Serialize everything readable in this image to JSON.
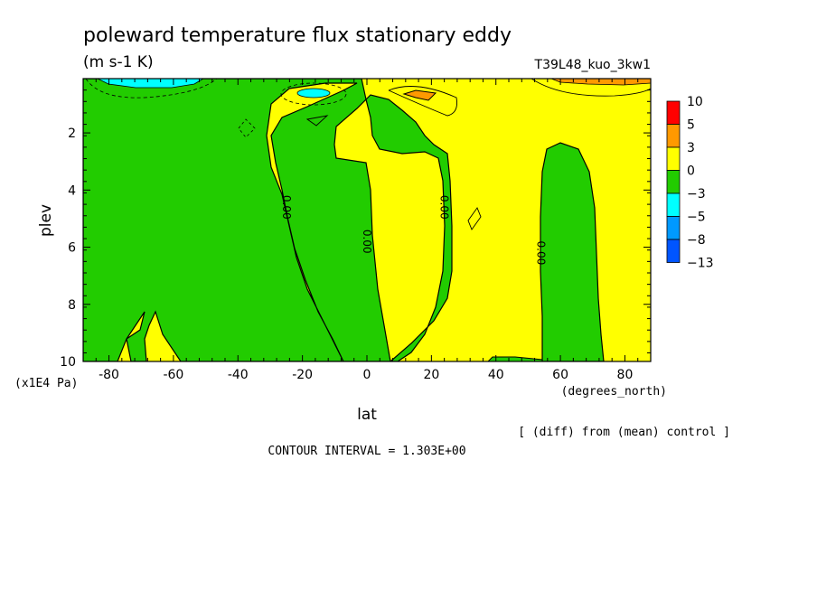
{
  "chart_data": {
    "type": "contour",
    "title": "poleward temperature flux stationary eddy",
    "units": "(m s-1 K)",
    "run_label": "T39L48_kuo_3kw1",
    "xlabel": "lat",
    "xunits": "(degrees_north)",
    "ylabel": "plev",
    "yunits": "(x1E4 Pa)",
    "diff_note": "[ (diff) from (mean) control ]",
    "contour_interval": "CONTOUR INTERVAL = 1.303E+00",
    "xlim": [
      -88,
      88
    ],
    "ylim": [
      10,
      0.1
    ],
    "y_reversed": true,
    "x_ticks": [
      -80,
      -60,
      -40,
      -20,
      0,
      20,
      40,
      60,
      80
    ],
    "y_ticks": [
      2,
      4,
      6,
      8,
      10
    ],
    "contour_labels": [
      {
        "lat": -25,
        "plev": 4.6,
        "text": "0.00"
      },
      {
        "lat": 0,
        "plev": 5.8,
        "text": "0.00"
      },
      {
        "lat": 24,
        "plev": 4.6,
        "text": "0.00"
      },
      {
        "lat": 54,
        "plev": 6.2,
        "text": "0.00"
      }
    ],
    "colorbar": {
      "labels": [
        "10",
        "5",
        "3",
        "0",
        "−3",
        "−5",
        "−8",
        "−13"
      ],
      "colors": [
        "#ff0000",
        "#ff9900",
        "#ffff00",
        "#22cc00",
        "#00ffff",
        "#0099ff",
        "#0055ff"
      ]
    }
  }
}
